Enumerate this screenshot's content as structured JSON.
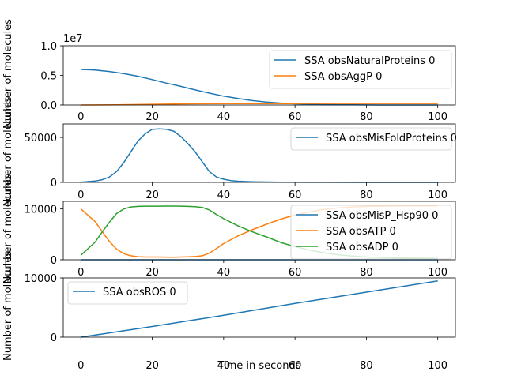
{
  "chart_data": [
    {
      "type": "line",
      "ylabel": "Number of molecules",
      "xlabel": "",
      "xlim": [
        0,
        100
      ],
      "ylim": [
        0,
        10000000
      ],
      "x_ticks": [
        "0",
        "20",
        "40",
        "60",
        "80",
        "100"
      ],
      "y_ticks": [
        "0.0",
        "0.5",
        "1.0"
      ],
      "y_offset_label": "1e7",
      "legend_position": "top-right",
      "series": [
        {
          "name": "SSA obsNaturalProteins 0",
          "color": "#1f77b4",
          "x": [
            0,
            4,
            8,
            12,
            16,
            20,
            24,
            28,
            32,
            36,
            40,
            44,
            48,
            52,
            56,
            60,
            64,
            68,
            72,
            76,
            80,
            84,
            88,
            92,
            96,
            100
          ],
          "y": [
            6000000,
            5900000,
            5650000,
            5300000,
            4850000,
            4300000,
            3700000,
            3150000,
            2550000,
            2000000,
            1500000,
            1100000,
            750000,
            500000,
            320000,
            200000,
            120000,
            70000,
            40000,
            20000,
            10000,
            5000,
            2500,
            1000,
            500,
            200
          ]
        },
        {
          "name": "SSA obsAggP 0",
          "color": "#ff7f0e",
          "x": [
            0,
            10,
            20,
            30,
            40,
            50,
            60,
            70,
            80,
            90,
            100
          ],
          "y": [
            0,
            30000,
            120000,
            200000,
            230000,
            240000,
            245000,
            248000,
            249000,
            250000,
            250000
          ]
        }
      ]
    },
    {
      "type": "line",
      "ylabel": "Number of molecules",
      "xlabel": "",
      "xlim": [
        0,
        100
      ],
      "ylim": [
        0,
        65000
      ],
      "x_ticks": [
        "0",
        "20",
        "40",
        "60",
        "80",
        "100"
      ],
      "y_ticks": [
        "0",
        "50000"
      ],
      "legend_position": "top-right",
      "series": [
        {
          "name": "SSA obsMisFoldProteins 0",
          "color": "#1f77b4",
          "x": [
            0,
            4,
            6,
            8,
            10,
            12,
            14,
            16,
            18,
            20,
            22,
            24,
            26,
            28,
            30,
            32,
            34,
            36,
            38,
            40,
            42,
            44,
            48,
            52,
            56,
            60,
            70,
            80,
            90,
            100
          ],
          "y": [
            200,
            1500,
            3000,
            6000,
            12000,
            22000,
            34000,
            46000,
            54000,
            59000,
            59500,
            59000,
            57000,
            51000,
            43000,
            34000,
            23000,
            12000,
            6000,
            3500,
            2000,
            1300,
            700,
            400,
            250,
            150,
            60,
            30,
            15,
            10
          ]
        }
      ]
    },
    {
      "type": "line",
      "ylabel": "Number of molecules",
      "xlabel": "",
      "xlim": [
        0,
        100
      ],
      "ylim": [
        0,
        11500
      ],
      "x_ticks": [
        "0",
        "20",
        "40",
        "60",
        "80",
        "100"
      ],
      "y_ticks": [
        "0",
        "10000"
      ],
      "legend_position": "right",
      "series": [
        {
          "name": "SSA obsMisP_Hsp90 0",
          "color": "#1f77b4",
          "x": [
            0,
            100
          ],
          "y": [
            0,
            0
          ]
        },
        {
          "name": "SSA obsATP 0",
          "color": "#ff7f0e",
          "x": [
            0,
            4,
            6,
            8,
            10,
            12,
            14,
            16,
            18,
            20,
            22,
            24,
            26,
            28,
            30,
            32,
            34,
            36,
            38,
            40,
            44,
            48,
            52,
            56,
            60,
            64,
            68,
            72,
            76,
            80,
            84,
            88,
            92,
            96,
            100
          ],
          "y": [
            10000,
            7500,
            5500,
            3600,
            2100,
            1200,
            800,
            600,
            550,
            550,
            550,
            530,
            520,
            540,
            580,
            640,
            800,
            1300,
            2200,
            3200,
            4700,
            5900,
            7000,
            8000,
            8800,
            9400,
            9900,
            10200,
            10400,
            10500,
            10550,
            10580,
            10600,
            10600,
            10600
          ]
        },
        {
          "name": "SSA obsADP 0",
          "color": "#2ca02c",
          "x": [
            0,
            4,
            6,
            8,
            10,
            12,
            14,
            16,
            18,
            20,
            22,
            24,
            26,
            28,
            30,
            32,
            34,
            36,
            38,
            40,
            44,
            48,
            52,
            56,
            60,
            64,
            68,
            72,
            76,
            80,
            84,
            88,
            92,
            96,
            100
          ],
          "y": [
            900,
            3500,
            5500,
            7400,
            9100,
            10000,
            10400,
            10500,
            10550,
            10550,
            10550,
            10560,
            10570,
            10550,
            10500,
            10450,
            10300,
            9800,
            8900,
            8100,
            6700,
            5500,
            4500,
            3400,
            2600,
            1900,
            1400,
            1000,
            750,
            550,
            450,
            380,
            330,
            300,
            280
          ]
        }
      ]
    },
    {
      "type": "line",
      "ylabel": "Number of molecules",
      "xlabel": "Time in seconds",
      "xlim": [
        0,
        100
      ],
      "ylim": [
        0,
        10000
      ],
      "x_ticks": [
        "0",
        "20",
        "40",
        "60",
        "80",
        "100"
      ],
      "y_ticks": [
        "0",
        "10000"
      ],
      "legend_position": "top-left",
      "series": [
        {
          "name": "SSA obsROS 0",
          "color": "#1f77b4",
          "x": [
            0,
            10,
            20,
            30,
            40,
            50,
            60,
            70,
            80,
            90,
            100
          ],
          "y": [
            0,
            900,
            1800,
            2750,
            3700,
            4700,
            5700,
            6650,
            7600,
            8550,
            9500
          ]
        }
      ]
    }
  ]
}
